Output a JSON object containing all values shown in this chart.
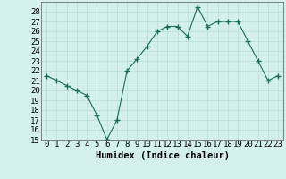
{
  "x": [
    0,
    1,
    2,
    3,
    4,
    5,
    6,
    7,
    8,
    9,
    10,
    11,
    12,
    13,
    14,
    15,
    16,
    17,
    18,
    19,
    20,
    21,
    22,
    23
  ],
  "y": [
    21.5,
    21.0,
    20.5,
    20.0,
    19.5,
    17.5,
    15.0,
    17.0,
    22.0,
    23.2,
    24.5,
    26.0,
    26.5,
    26.5,
    25.5,
    28.5,
    26.5,
    27.0,
    27.0,
    27.0,
    25.0,
    23.0,
    21.0,
    21.5
  ],
  "line_color": "#1a6b5a",
  "marker": "+",
  "marker_size": 4,
  "bg_color": "#d4f0ec",
  "grid_color": "#b8ddd8",
  "xlabel": "Humidex (Indice chaleur)",
  "xlim": [
    -0.5,
    23.5
  ],
  "ylim": [
    15,
    29
  ],
  "yticks": [
    15,
    16,
    17,
    18,
    19,
    20,
    21,
    22,
    23,
    24,
    25,
    26,
    27,
    28
  ],
  "xtick_positions": [
    0,
    1,
    2,
    3,
    4,
    5,
    6,
    7,
    8,
    9,
    10,
    11,
    12,
    13,
    14,
    15,
    16,
    17,
    18,
    19,
    20,
    21,
    22,
    23
  ],
  "xtick_labels": [
    "0",
    "1",
    "2",
    "3",
    "4",
    "5",
    "6",
    "7",
    "8",
    "9",
    "10",
    "11",
    "12",
    "13",
    "14",
    "15",
    "16",
    "17",
    "18",
    "19",
    "20",
    "21",
    "22",
    "23"
  ],
  "font_size": 6.5,
  "xlabel_fontsize": 7.5
}
